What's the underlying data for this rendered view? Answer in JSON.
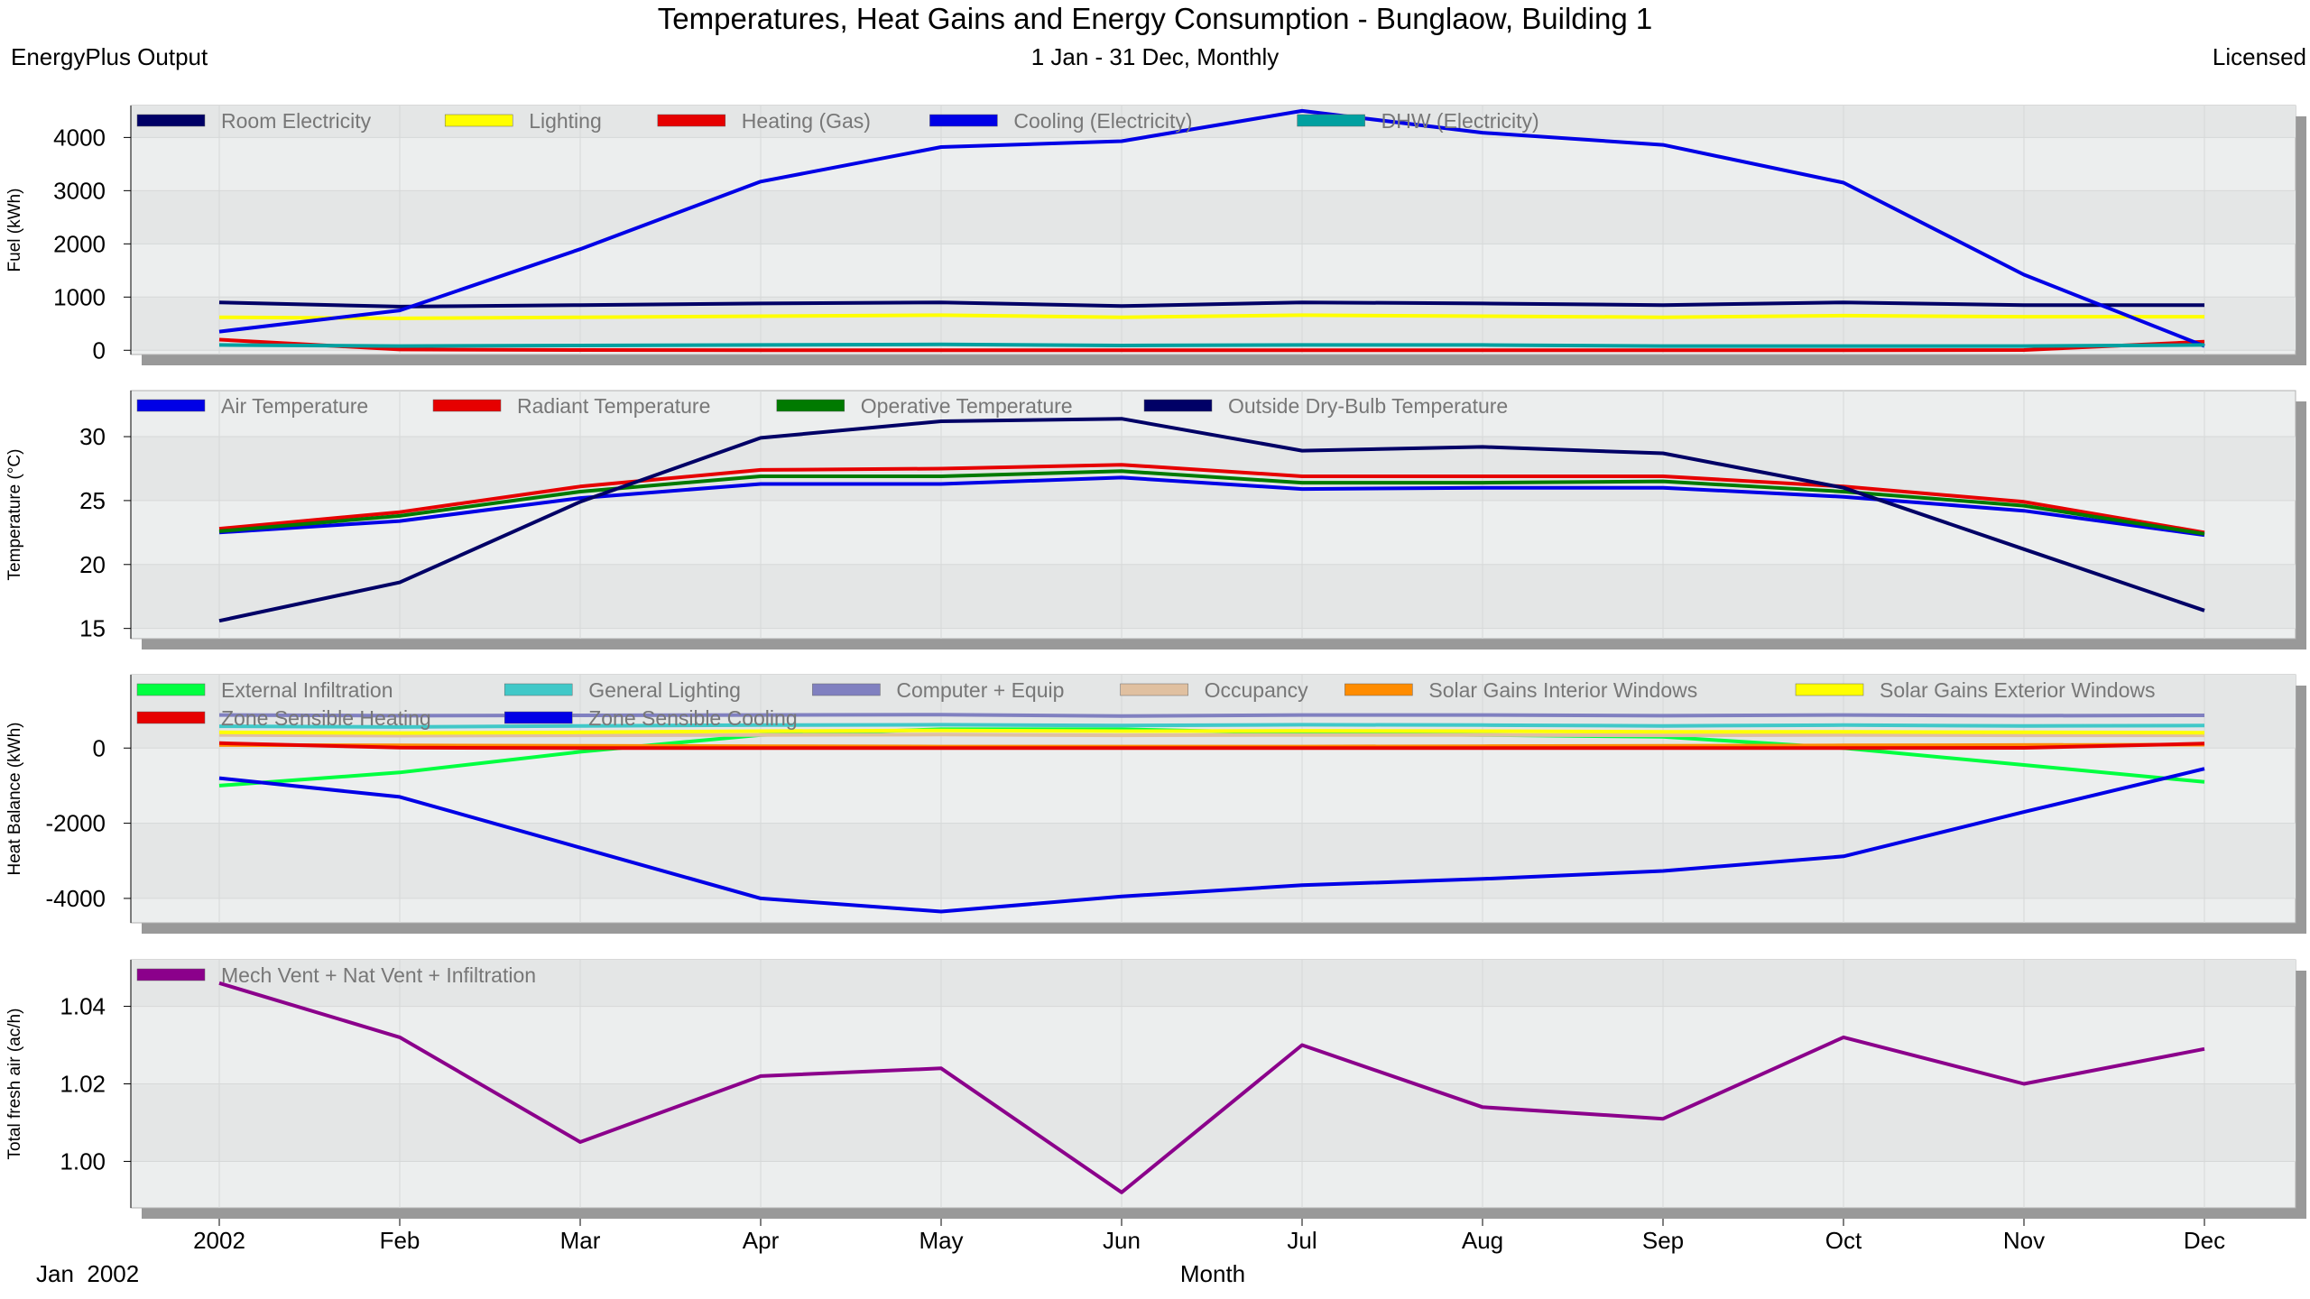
{
  "header": {
    "title": "Temperatures, Heat Gains and Energy Consumption - Bunglaow, Building 1",
    "left_label": "EnergyPlus Output",
    "subtitle": "1 Jan - 31 Dec, Monthly",
    "right_label": "Licensed"
  },
  "colors": {
    "panel_background": "#ECEEEE",
    "panel_band": "#E4E6E6",
    "panel_shadow": "#999999"
  },
  "chart_data": [
    {
      "type": "line",
      "ylabel": "Fuel (kWh)",
      "ylim": [
        -80,
        4600
      ],
      "yticks": [
        0,
        1000,
        2000,
        3000,
        4000
      ],
      "legend_placement": "top-left",
      "series": [
        {
          "name": "Room Electricity",
          "color": "#000066",
          "values": [
            900,
            820,
            850,
            880,
            900,
            830,
            900,
            880,
            850,
            900,
            850,
            850
          ]
        },
        {
          "name": "Lighting",
          "color": "#FFFF00",
          "values": [
            620,
            600,
            620,
            640,
            660,
            620,
            660,
            640,
            620,
            650,
            630,
            630
          ]
        },
        {
          "name": "Heating (Gas)",
          "color": "#E60000",
          "values": [
            200,
            15,
            5,
            0,
            0,
            0,
            0,
            0,
            0,
            0,
            5,
            160
          ]
        },
        {
          "name": "Cooling (Electricity)",
          "color": "#0000E6",
          "values": [
            350,
            750,
            1900,
            3170,
            3820,
            3930,
            4500,
            4090,
            3860,
            3150,
            1420,
            80
          ]
        },
        {
          "name": "DHW (Electricity)",
          "color": "#00A0A0",
          "values": [
            100,
            80,
            90,
            100,
            110,
            90,
            100,
            100,
            80,
            80,
            80,
            100
          ]
        }
      ]
    },
    {
      "type": "line",
      "ylabel": "Temperature (°C)",
      "ylim": [
        14.2,
        33.6
      ],
      "yticks": [
        15,
        20,
        25,
        30
      ],
      "legend_placement": "top-left",
      "series": [
        {
          "name": "Air Temperature",
          "color": "#0000E6",
          "values": [
            22.5,
            23.4,
            25.2,
            26.3,
            26.3,
            26.8,
            25.9,
            26.0,
            26.0,
            25.3,
            24.2,
            22.3
          ]
        },
        {
          "name": "Radiant Temperature",
          "color": "#E60000",
          "values": [
            22.8,
            24.1,
            26.1,
            27.4,
            27.5,
            27.8,
            26.9,
            26.9,
            26.9,
            26.1,
            24.9,
            22.5
          ]
        },
        {
          "name": "Operative Temperature",
          "color": "#007A00",
          "values": [
            22.6,
            23.8,
            25.7,
            26.9,
            26.9,
            27.3,
            26.4,
            26.4,
            26.5,
            25.7,
            24.6,
            22.4
          ]
        },
        {
          "name": "Outside Dry-Bulb Temperature",
          "color": "#000066",
          "values": [
            15.6,
            18.6,
            24.9,
            29.9,
            31.2,
            31.4,
            28.9,
            29.2,
            28.7,
            26.0,
            21.2,
            16.4
          ]
        }
      ]
    },
    {
      "type": "line",
      "ylabel": "Heat Balance (kWh)",
      "ylim": [
        -4650,
        1950
      ],
      "yticks": [
        -4000,
        -2000,
        0
      ],
      "legend_placement": "top-left",
      "series": [
        {
          "name": "External Infiltration",
          "color": "#00FF40",
          "values": [
            -1000,
            -650,
            -100,
            350,
            500,
            500,
            400,
            350,
            300,
            0,
            -450,
            -900
          ]
        },
        {
          "name": "General Lighting",
          "color": "#40C8C8",
          "values": [
            580,
            560,
            590,
            610,
            620,
            600,
            620,
            610,
            590,
            610,
            590,
            600
          ]
        },
        {
          "name": "Computer + Equip",
          "color": "#8080C0",
          "values": [
            880,
            860,
            870,
            880,
            890,
            850,
            880,
            880,
            860,
            880,
            860,
            870
          ]
        },
        {
          "name": "Occupancy",
          "color": "#E0C0A0",
          "values": [
            350,
            330,
            340,
            350,
            360,
            340,
            350,
            350,
            340,
            350,
            340,
            340
          ]
        },
        {
          "name": "Solar Gains Interior Windows",
          "color": "#FF8C00",
          "values": [
            80,
            70,
            60,
            50,
            40,
            40,
            40,
            50,
            60,
            70,
            80,
            90
          ]
        },
        {
          "name": "Solar Gains Exterior Windows",
          "color": "#FFFF00",
          "values": [
            420,
            400,
            420,
            450,
            470,
            450,
            460,
            450,
            430,
            430,
            420,
            410
          ]
        },
        {
          "name": "Zone Sensible Heating",
          "color": "#E60000",
          "values": [
            130,
            10,
            0,
            0,
            0,
            0,
            0,
            0,
            0,
            0,
            5,
            120
          ]
        },
        {
          "name": "Zone Sensible Cooling",
          "color": "#0000E6",
          "values": [
            -800,
            -1300,
            -2650,
            -4000,
            -4350,
            -3950,
            -3650,
            -3480,
            -3270,
            -2880,
            -1700,
            -550
          ]
        }
      ]
    },
    {
      "type": "line",
      "ylabel": "Total fresh air (ac/h)",
      "ylim": [
        0.988,
        1.052
      ],
      "yticks": [
        1.0,
        1.02,
        1.04
      ],
      "ytick_labels": [
        "1.00",
        "1.02",
        "1.04"
      ],
      "legend_placement": "top-left",
      "series": [
        {
          "name": "Mech Vent + Nat Vent + Infiltration",
          "color": "#8B008B",
          "values": [
            1.046,
            1.032,
            1.005,
            1.022,
            1.024,
            0.992,
            1.03,
            1.014,
            1.011,
            1.032,
            1.02,
            1.029
          ]
        }
      ]
    }
  ],
  "x_axis": {
    "tick_labels": [
      "2002",
      "Feb",
      "Mar",
      "Apr",
      "May",
      "Jun",
      "Jul",
      "Aug",
      "Sep",
      "Oct",
      "Nov",
      "Dec"
    ],
    "xlabel": "Month",
    "start_label": "Jan  2002"
  }
}
